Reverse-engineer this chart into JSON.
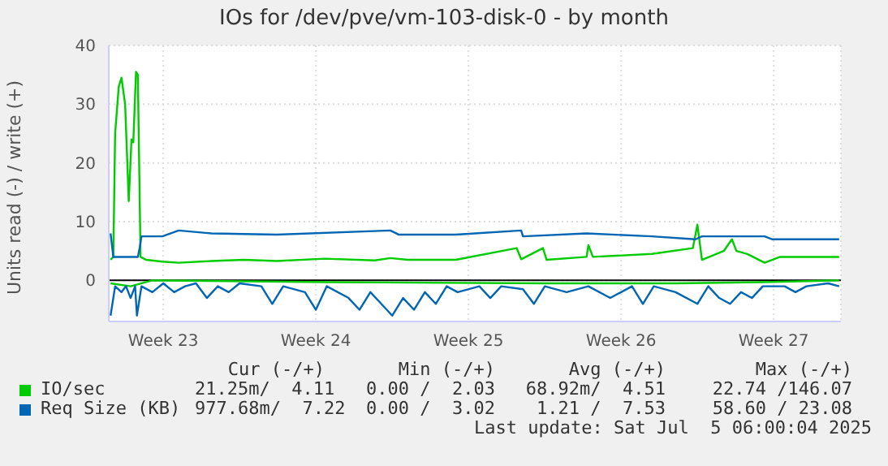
{
  "chart_data": {
    "type": "line",
    "title": "IOs for /dev/pve/vm-103-disk-0 - by month",
    "ylabel": "Units read (-) / write (+)",
    "xlim": [
      "2025-06-03T00:00",
      "2025-07-06T14:00"
    ],
    "xticks": [
      {
        "value": "2025-06-05T12:00",
        "label": "Week 23"
      },
      {
        "value": "2025-06-12T12:00",
        "label": "Week 24"
      },
      {
        "value": "2025-06-19T12:00",
        "label": "Week 25"
      },
      {
        "value": "2025-06-26T12:00",
        "label": "Week 26"
      },
      {
        "value": "2025-07-03T12:00",
        "label": "Week 27"
      }
    ],
    "ylim": [
      -7,
      40
    ],
    "yticks": [
      0,
      10,
      20,
      30,
      40
    ],
    "grid": true,
    "legend": "bottom left",
    "marker": "none",
    "line_style": "solid",
    "ref_lines": [
      {
        "axis": "y",
        "value": 0,
        "color": "#000000"
      }
    ],
    "series": [
      {
        "name": "IO/sec",
        "color": "#00cc00",
        "x": [
          "2025-06-03T02:00",
          "2025-06-03T05:00",
          "2025-06-03T07:00",
          "2025-06-03T11:00",
          "2025-06-03T14:00",
          "2025-06-03T18:00",
          "2025-06-03T22:00",
          "2025-06-04T01:00",
          "2025-06-04T03:00",
          "2025-06-04T06:00",
          "2025-06-04T08:00",
          "2025-06-04T11:00",
          "2025-06-04T17:00",
          "2025-06-05T11:00",
          "2025-06-06T05:00",
          "2025-06-07T17:00",
          "2025-06-09T05:00",
          "2025-06-10T17:00",
          "2025-06-12T22:00",
          "2025-06-15T05:00",
          "2025-06-15T22:00",
          "2025-06-16T17:00",
          "2025-06-18T22:00",
          "2025-06-21T17:00",
          "2025-06-21T22:00",
          "2025-06-22T22:00",
          "2025-06-23T02:00",
          "2025-06-24T22:00",
          "2025-06-25T00:00",
          "2025-06-25T05:00",
          "2025-06-27T22:00",
          "2025-06-29T19:00",
          "2025-06-30T00:00",
          "2025-06-30T05:00",
          "2025-07-01T05:00",
          "2025-07-01T14:00",
          "2025-07-01T19:00",
          "2025-07-02T07:00",
          "2025-07-03T02:00",
          "2025-07-03T19:00",
          "2025-07-05T07:00",
          "2025-07-06T12:00"
        ],
        "values": [
          3.5,
          4,
          25,
          33,
          34.5,
          30,
          13.5,
          24,
          23.5,
          35.5,
          35,
          4,
          3.5,
          3.2,
          3,
          3.3,
          3.5,
          3.3,
          3.7,
          3.4,
          3.8,
          3.5,
          3.5,
          5.5,
          3.6,
          5.5,
          3.5,
          4,
          6,
          4,
          4.5,
          5.5,
          9.5,
          3.5,
          5,
          7,
          5,
          4.5,
          3,
          4,
          4,
          4
        ]
      },
      {
        "color": "#00cc00",
        "x": [
          "2025-06-03T02:00",
          "2025-06-04T00:00",
          "2025-06-05T00:00",
          "2025-06-13T00:00",
          "2025-06-23T00:00",
          "2025-06-29T00:00",
          "2025-07-03T00:00",
          "2025-07-06T12:00"
        ],
        "values": [
          -0.5,
          -1,
          0,
          -0.3,
          -0.5,
          -0.5,
          -0.3,
          0
        ]
      },
      {
        "name": "Req Size (KB)",
        "color": "#0066b3",
        "x": [
          "2025-06-03T02:00",
          "2025-06-03T05:00",
          "2025-06-04T08:00",
          "2025-06-04T10:00",
          "2025-06-04T12:00",
          "2025-06-05T11:00",
          "2025-06-06T05:00",
          "2025-06-07T17:00",
          "2025-06-10T17:00",
          "2025-06-15T22:00",
          "2025-06-16T07:00",
          "2025-06-18T22:00",
          "2025-06-21T22:00",
          "2025-06-22T00:00",
          "2025-06-24T22:00",
          "2025-06-27T22:00",
          "2025-06-29T22:00",
          "2025-06-30T05:00",
          "2025-07-01T14:00",
          "2025-07-03T02:00",
          "2025-07-03T10:00",
          "2025-07-06T12:00"
        ],
        "values": [
          8,
          4,
          4,
          5.5,
          7.5,
          7.5,
          8.5,
          8,
          7.8,
          8.5,
          7.8,
          7.8,
          8.5,
          7.5,
          8,
          7.5,
          7,
          7.5,
          7.5,
          7.5,
          7,
          7
        ]
      },
      {
        "color": "#0066b3",
        "x": [
          "2025-06-03T02:00",
          "2025-06-03T07:00",
          "2025-06-03T14:00",
          "2025-06-03T19:00",
          "2025-06-04T00:00",
          "2025-06-04T05:00",
          "2025-06-04T07:00",
          "2025-06-04T12:00",
          "2025-06-05T00:00",
          "2025-06-05T12:00",
          "2025-06-06T00:00",
          "2025-06-06T12:00",
          "2025-06-07T00:00",
          "2025-06-07T12:00",
          "2025-06-08T00:00",
          "2025-06-08T12:00",
          "2025-06-09T00:00",
          "2025-06-10T00:00",
          "2025-06-10T12:00",
          "2025-06-11T00:00",
          "2025-06-12T00:00",
          "2025-06-12T12:00",
          "2025-06-13T00:00",
          "2025-06-14T00:00",
          "2025-06-14T12:00",
          "2025-06-15T00:00",
          "2025-06-15T12:00",
          "2025-06-16T00:00",
          "2025-06-16T12:00",
          "2025-06-17T00:00",
          "2025-06-17T12:00",
          "2025-06-18T00:00",
          "2025-06-18T12:00",
          "2025-06-19T00:00",
          "2025-06-20T00:00",
          "2025-06-20T12:00",
          "2025-06-21T00:00",
          "2025-06-22T00:00",
          "2025-06-22T12:00",
          "2025-06-23T00:00",
          "2025-06-24T00:00",
          "2025-06-25T00:00",
          "2025-06-26T00:00",
          "2025-06-27T00:00",
          "2025-06-27T12:00",
          "2025-06-28T00:00",
          "2025-06-29T00:00",
          "2025-06-30T00:00",
          "2025-06-30T12:00",
          "2025-07-01T00:00",
          "2025-07-01T12:00",
          "2025-07-02T00:00",
          "2025-07-02T12:00",
          "2025-07-03T00:00",
          "2025-07-04T00:00",
          "2025-07-04T12:00",
          "2025-07-05T00:00",
          "2025-07-06T00:00",
          "2025-07-06T12:00"
        ],
        "values": [
          -6,
          -1,
          -2,
          -1,
          -3,
          -1,
          -6,
          -1,
          -2,
          -0.5,
          -2,
          -1,
          -0.5,
          -3,
          -1,
          -2,
          -0.5,
          -1,
          -4,
          -1,
          -2,
          -5,
          -1,
          -3,
          -5,
          -2,
          -4,
          -6,
          -3,
          -5,
          -2,
          -4,
          -1,
          -2,
          -1,
          -3,
          -1,
          -1.5,
          -4,
          -1,
          -2,
          -1,
          -3,
          -1,
          -4,
          -1,
          -2,
          -4,
          -1,
          -3,
          -4,
          -2,
          -3,
          -1,
          -1,
          -2,
          -1,
          -0.5,
          -1
        ]
      }
    ],
    "annotations": [
      "Cur (-/+)",
      "Min (-/+)",
      "Avg (-/+)",
      "Max (-/+)",
      "21.25m/  4.11",
      "0.00 /  2.03",
      "68.92m/  4.51",
      "22.74 /146.07",
      "977.68m/  7.22",
      "0.00 /  3.02",
      "1.21 /  7.53",
      "58.60 / 23.08",
      "Last update: Sat Jul  5 06:00:04 2025"
    ]
  }
}
